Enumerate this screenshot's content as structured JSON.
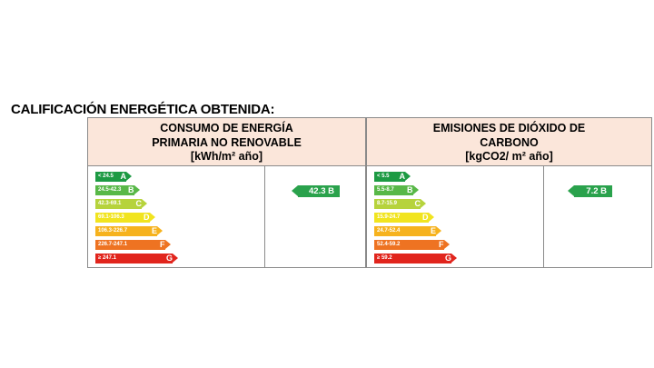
{
  "title": "CALIFICACIÓN ENERGÉTICA OBTENIDA:",
  "colors": {
    "A": "#1d9a43",
    "B": "#58b848",
    "C": "#b6d33c",
    "D": "#f1e41f",
    "E": "#f6b21d",
    "F": "#ee7322",
    "G": "#e1251d"
  },
  "panels": [
    {
      "heading_line1": "CONSUMO DE ENERGÍA",
      "heading_line2": "PRIMARIA NO RENOVABLE",
      "unit": "[kWh/m² año]",
      "scale": [
        {
          "range": "< 24.5",
          "letter": "A"
        },
        {
          "range": "24.5-42.3",
          "letter": "B"
        },
        {
          "range": "42.3-69.1",
          "letter": "C"
        },
        {
          "range": "69.1-106.3",
          "letter": "D"
        },
        {
          "range": "106.3-226.7",
          "letter": "E"
        },
        {
          "range": "226.7-247.1",
          "letter": "F"
        },
        {
          "range": "≥ 247.1",
          "letter": "G"
        }
      ],
      "result": "42.3 B",
      "result_class": "B"
    },
    {
      "heading_line1": "EMISIONES DE DIÓXIDO DE",
      "heading_line2": "CARBONO",
      "unit": "[kgCO2/ m² año]",
      "scale": [
        {
          "range": "< 5.5",
          "letter": "A"
        },
        {
          "range": "5.5-8.7",
          "letter": "B"
        },
        {
          "range": "8.7-15.9",
          "letter": "C"
        },
        {
          "range": "15.9-24.7",
          "letter": "D"
        },
        {
          "range": "24.7-52.4",
          "letter": "E"
        },
        {
          "range": "52.4-59.2",
          "letter": "F"
        },
        {
          "range": "≥ 59.2",
          "letter": "G"
        }
      ],
      "result": "7.2 B",
      "result_class": "B"
    }
  ]
}
